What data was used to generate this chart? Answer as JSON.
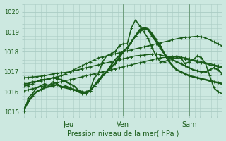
{
  "xlabel": "Pression niveau de la mer( hPa )",
  "ylim": [
    1014.8,
    1020.3
  ],
  "xlim": [
    0,
    108
  ],
  "yticks": [
    1015,
    1016,
    1017,
    1018,
    1019,
    1020
  ],
  "xtick_positions": [
    24,
    54,
    90
  ],
  "xtick_labels": [
    "Jeu",
    "Ven",
    "Sam"
  ],
  "bg_color": "#cce8e0",
  "grid_color": "#aaccC4",
  "line_color": "#1a5c1a",
  "series": [
    {
      "type": "wiggly",
      "data": [
        1015.0,
        1015.7,
        1015.9,
        1016.2,
        1016.3,
        1016.4,
        1016.3,
        1016.5,
        1016.4,
        1016.2,
        1016.3,
        1016.2,
        1016.1,
        1016.0,
        1015.9,
        1016.0,
        1016.1,
        1016.7,
        1016.9,
        1017.5,
        1017.8,
        1017.9,
        1018.0,
        1018.3,
        1018.4,
        1018.4,
        1019.2,
        1019.6,
        1019.3,
        1019.0,
        1018.7,
        1018.2,
        1017.8,
        1017.5,
        1017.5,
        1017.6,
        1017.7,
        1017.8,
        1017.7,
        1017.4,
        1017.5,
        1017.6,
        1017.8,
        1017.7,
        1017.4,
        1016.8,
        1016.2,
        1016.0,
        1015.9
      ],
      "lw": 1.2
    },
    {
      "type": "straight",
      "data": [
        1016.3,
        1016.3,
        1016.4,
        1016.5,
        1016.55,
        1016.6,
        1016.65,
        1016.7,
        1016.75,
        1016.8,
        1016.9,
        1017.0,
        1017.1,
        1017.2,
        1017.3,
        1017.4,
        1017.5,
        1017.6,
        1017.7,
        1017.75,
        1017.8,
        1017.85,
        1017.9,
        1017.95,
        1018.0,
        1018.05,
        1018.1,
        1018.15,
        1018.2,
        1018.25,
        1018.3,
        1018.35,
        1018.4,
        1018.45,
        1018.5,
        1018.55,
        1018.6,
        1018.65,
        1018.7,
        1018.72,
        1018.74,
        1018.76,
        1018.78,
        1018.75,
        1018.7,
        1018.6,
        1018.5,
        1018.4,
        1018.3
      ],
      "lw": 1.0
    },
    {
      "type": "straight",
      "data": [
        1016.7,
        1016.72,
        1016.74,
        1016.76,
        1016.78,
        1016.8,
        1016.85,
        1016.9,
        1016.92,
        1016.95,
        1016.97,
        1017.0,
        1017.05,
        1017.1,
        1017.15,
        1017.2,
        1017.25,
        1017.3,
        1017.35,
        1017.4,
        1017.45,
        1017.5,
        1017.55,
        1017.6,
        1017.65,
        1017.7,
        1017.75,
        1017.8,
        1017.82,
        1017.84,
        1017.86,
        1017.88,
        1017.9,
        1017.85,
        1017.8,
        1017.75,
        1017.7,
        1017.68,
        1017.66,
        1017.64,
        1017.6,
        1017.55,
        1017.5,
        1017.45,
        1017.4,
        1017.35,
        1017.3,
        1017.25,
        1017.2
      ],
      "lw": 1.0
    },
    {
      "type": "straight",
      "data": [
        1016.05,
        1016.1,
        1016.15,
        1016.2,
        1016.25,
        1016.3,
        1016.35,
        1016.4,
        1016.45,
        1016.5,
        1016.55,
        1016.6,
        1016.65,
        1016.7,
        1016.75,
        1016.8,
        1016.85,
        1016.9,
        1016.95,
        1017.0,
        1017.05,
        1017.1,
        1017.15,
        1017.2,
        1017.25,
        1017.3,
        1017.35,
        1017.4,
        1017.45,
        1017.5,
        1017.55,
        1017.6,
        1017.65,
        1017.7,
        1017.72,
        1017.74,
        1017.76,
        1017.75,
        1017.73,
        1017.7,
        1017.65,
        1017.6,
        1017.55,
        1017.5,
        1017.45,
        1017.4,
        1017.35,
        1017.3,
        1017.25
      ],
      "lw": 1.0
    },
    {
      "type": "wiggly2",
      "data": [
        1016.4,
        1016.4,
        1016.5,
        1016.5,
        1016.6,
        1016.6,
        1016.65,
        1016.7,
        1016.65,
        1016.6,
        1016.5,
        1016.4,
        1016.3,
        1016.1,
        1015.95,
        1015.9,
        1016.05,
        1016.3,
        1016.6,
        1016.8,
        1017.0,
        1017.3,
        1017.6,
        1017.8,
        1018.0,
        1018.2,
        1018.5,
        1018.8,
        1019.0,
        1019.15,
        1019.1,
        1018.8,
        1018.5,
        1018.2,
        1017.9,
        1017.7,
        1017.6,
        1017.5,
        1017.4,
        1017.3,
        1017.2,
        1017.1,
        1017.05,
        1017.0,
        1017.0,
        1017.1,
        1017.2,
        1017.1,
        1016.9
      ],
      "lw": 1.5
    },
    {
      "type": "wiggly3",
      "data": [
        1015.15,
        1015.5,
        1015.8,
        1016.0,
        1016.1,
        1016.2,
        1016.25,
        1016.3,
        1016.35,
        1016.25,
        1016.2,
        1016.15,
        1016.1,
        1016.05,
        1016.0,
        1015.95,
        1016.05,
        1016.3,
        1016.5,
        1016.8,
        1017.0,
        1017.2,
        1017.4,
        1017.7,
        1018.0,
        1018.2,
        1018.5,
        1018.8,
        1019.1,
        1019.2,
        1019.15,
        1018.9,
        1018.6,
        1018.3,
        1017.9,
        1017.55,
        1017.3,
        1017.1,
        1017.0,
        1016.9,
        1016.8,
        1016.75,
        1016.7,
        1016.65,
        1016.6,
        1016.55,
        1016.5,
        1016.45,
        1016.4
      ],
      "lw": 1.8
    }
  ],
  "marker_size": 2.2
}
